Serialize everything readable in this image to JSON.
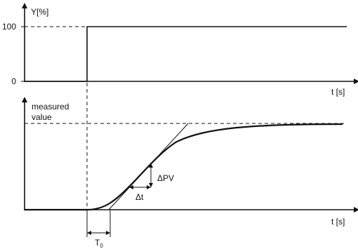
{
  "top_plot": {
    "y_axis_label": "Y[%]",
    "tick_100": "100",
    "tick_0": "0",
    "x_axis_label": "t [s]"
  },
  "bottom_plot": {
    "y_axis_label_line1": "measured",
    "y_axis_label_line2": "value",
    "x_axis_label": "t [s]",
    "delta_pv_label": "ΔPV",
    "delta_t_label": "Δt",
    "dead_time_label": "T",
    "dead_time_subscript": "0"
  },
  "colors": {
    "stroke": "#111111",
    "background": "#ffffff"
  }
}
